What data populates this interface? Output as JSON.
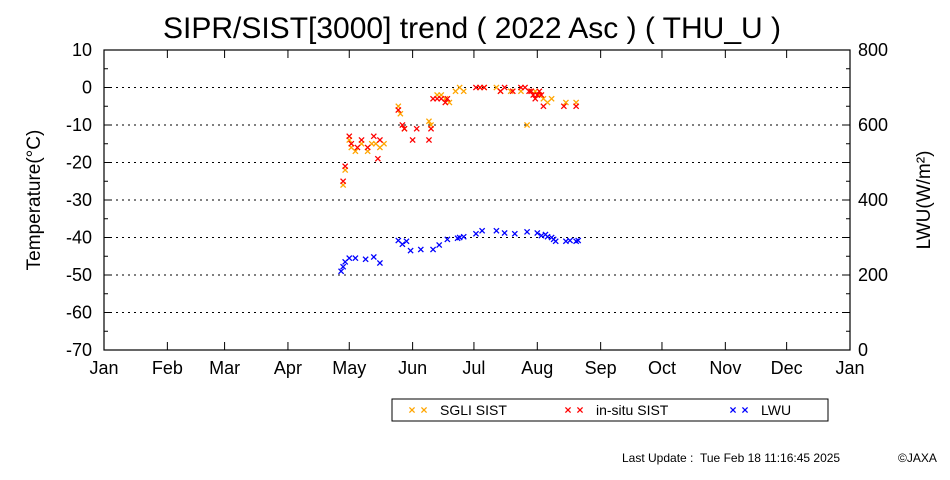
{
  "chart_data": {
    "type": "scatter",
    "title": "SIPR/SIST[3000] trend ( 2022 Asc ) ( THU_U )",
    "ylabel": "Temperature(°C)",
    "y2label": "LWU(W/m²)",
    "x_ticks": [
      "Jan",
      "Feb",
      "Mar",
      "Apr",
      "May",
      "Jun",
      "Jul",
      "Aug",
      "Sep",
      "Oct",
      "Nov",
      "Dec",
      "Jan"
    ],
    "x_range_day_of_year": [
      1,
      366
    ],
    "ylim": [
      -70,
      10
    ],
    "y_ticks": [
      "10",
      "0",
      "-10",
      "-20",
      "-30",
      "-40",
      "-50",
      "-60",
      "-70"
    ],
    "y2lim": [
      0,
      800
    ],
    "y2_ticks": [
      "800",
      "600",
      "400",
      "200",
      "0"
    ],
    "grid": "horizontal dotted",
    "legend_position": "bottom",
    "series": [
      {
        "name": "SGLI SIST",
        "color": "#ffa500",
        "axis": "left",
        "points": [
          [
            118,
            -26
          ],
          [
            119,
            -22
          ],
          [
            121,
            -14
          ],
          [
            122,
            -16
          ],
          [
            124,
            -17
          ],
          [
            127,
            -15
          ],
          [
            130,
            -17
          ],
          [
            132,
            -15
          ],
          [
            134,
            -15
          ],
          [
            136,
            -16
          ],
          [
            138,
            -15
          ],
          [
            145,
            -5
          ],
          [
            146,
            -7
          ],
          [
            148,
            -11
          ],
          [
            160,
            -9
          ],
          [
            161,
            -10
          ],
          [
            164,
            -2
          ],
          [
            166,
            -2
          ],
          [
            168,
            -3
          ],
          [
            170,
            -4
          ],
          [
            173,
            -1
          ],
          [
            175,
            0
          ],
          [
            177,
            -1
          ],
          [
            185,
            0
          ],
          [
            187,
            0
          ],
          [
            193,
            0
          ],
          [
            195,
            -1
          ],
          [
            200,
            -1
          ],
          [
            205,
            -1
          ],
          [
            208,
            -10
          ],
          [
            210,
            -1
          ],
          [
            212,
            -1
          ],
          [
            214,
            -2
          ],
          [
            216,
            -3
          ],
          [
            218,
            -4
          ],
          [
            220,
            -3
          ],
          [
            227,
            -4
          ],
          [
            232,
            -4
          ]
        ]
      },
      {
        "name": "in-situ SIST",
        "color": "#ff0000",
        "axis": "left",
        "points": [
          [
            118,
            -25
          ],
          [
            119,
            -21
          ],
          [
            121,
            -13
          ],
          [
            122,
            -15
          ],
          [
            125,
            -16
          ],
          [
            127,
            -14
          ],
          [
            130,
            -16
          ],
          [
            133,
            -13
          ],
          [
            135,
            -19
          ],
          [
            136,
            -14
          ],
          [
            145,
            -6
          ],
          [
            147,
            -10
          ],
          [
            148,
            -11
          ],
          [
            152,
            -14
          ],
          [
            154,
            -11
          ],
          [
            160,
            -14
          ],
          [
            161,
            -11
          ],
          [
            162,
            -3
          ],
          [
            164,
            -3
          ],
          [
            166,
            -3
          ],
          [
            168,
            -4
          ],
          [
            169,
            -3
          ],
          [
            183,
            0
          ],
          [
            185,
            0
          ],
          [
            187,
            0
          ],
          [
            195,
            -1
          ],
          [
            197,
            0
          ],
          [
            201,
            -1
          ],
          [
            205,
            0
          ],
          [
            207,
            0
          ],
          [
            209,
            -1
          ],
          [
            210,
            -1
          ],
          [
            211,
            -2
          ],
          [
            212,
            -3
          ],
          [
            213,
            -2
          ],
          [
            214,
            -1
          ],
          [
            215,
            -2
          ],
          [
            216,
            -5
          ],
          [
            226,
            -5
          ],
          [
            232,
            -5
          ]
        ]
      },
      {
        "name": "LWU",
        "color": "#0000ff",
        "axis": "right",
        "points": [
          [
            117,
            210
          ],
          [
            118,
            222
          ],
          [
            119,
            235
          ],
          [
            121,
            245
          ],
          [
            124,
            245
          ],
          [
            129,
            242
          ],
          [
            133,
            248
          ],
          [
            136,
            232
          ],
          [
            145,
            292
          ],
          [
            147,
            282
          ],
          [
            149,
            290
          ],
          [
            151,
            265
          ],
          [
            156,
            268
          ],
          [
            162,
            268
          ],
          [
            165,
            280
          ],
          [
            169,
            295
          ],
          [
            174,
            298
          ],
          [
            175,
            300
          ],
          [
            177,
            302
          ],
          [
            183,
            310
          ],
          [
            186,
            318
          ],
          [
            193,
            318
          ],
          [
            197,
            312
          ],
          [
            202,
            310
          ],
          [
            208,
            315
          ],
          [
            213,
            312
          ],
          [
            215,
            305
          ],
          [
            217,
            308
          ],
          [
            218,
            302
          ],
          [
            220,
            300
          ],
          [
            221,
            295
          ],
          [
            222,
            290
          ],
          [
            227,
            290
          ],
          [
            229,
            292
          ],
          [
            232,
            290
          ],
          [
            233,
            292
          ]
        ]
      }
    ]
  },
  "footer": {
    "update_label": "Last Update :",
    "timestamp": "Tue Feb 18 11:16:45 2025",
    "credit": "©JAXA"
  }
}
